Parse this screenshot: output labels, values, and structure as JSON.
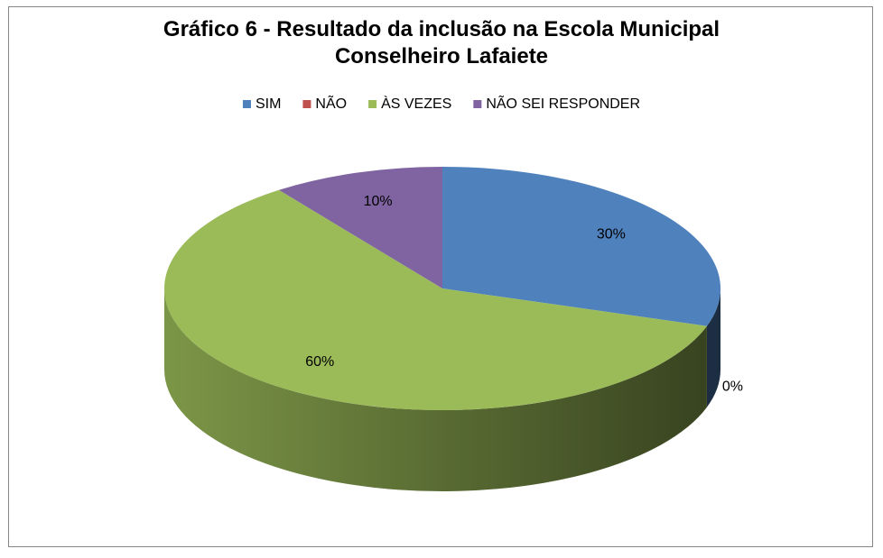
{
  "chart_data": {
    "type": "pie3d",
    "title": "Gráfico 6 - Resultado da inclusão na Escola Municipal Conselheiro Lafaiete",
    "legend": "top",
    "categories": [
      "SIM",
      "NÃO",
      "ÀS VEZES",
      "NÃO SEI RESPONDER"
    ],
    "values": [
      30,
      0,
      60,
      10
    ],
    "value_labels": [
      "30%",
      "0%",
      "60%",
      "10%"
    ],
    "colors": [
      "#4f81bd",
      "#c0504d",
      "#9bbb59",
      "#8064a2"
    ]
  }
}
